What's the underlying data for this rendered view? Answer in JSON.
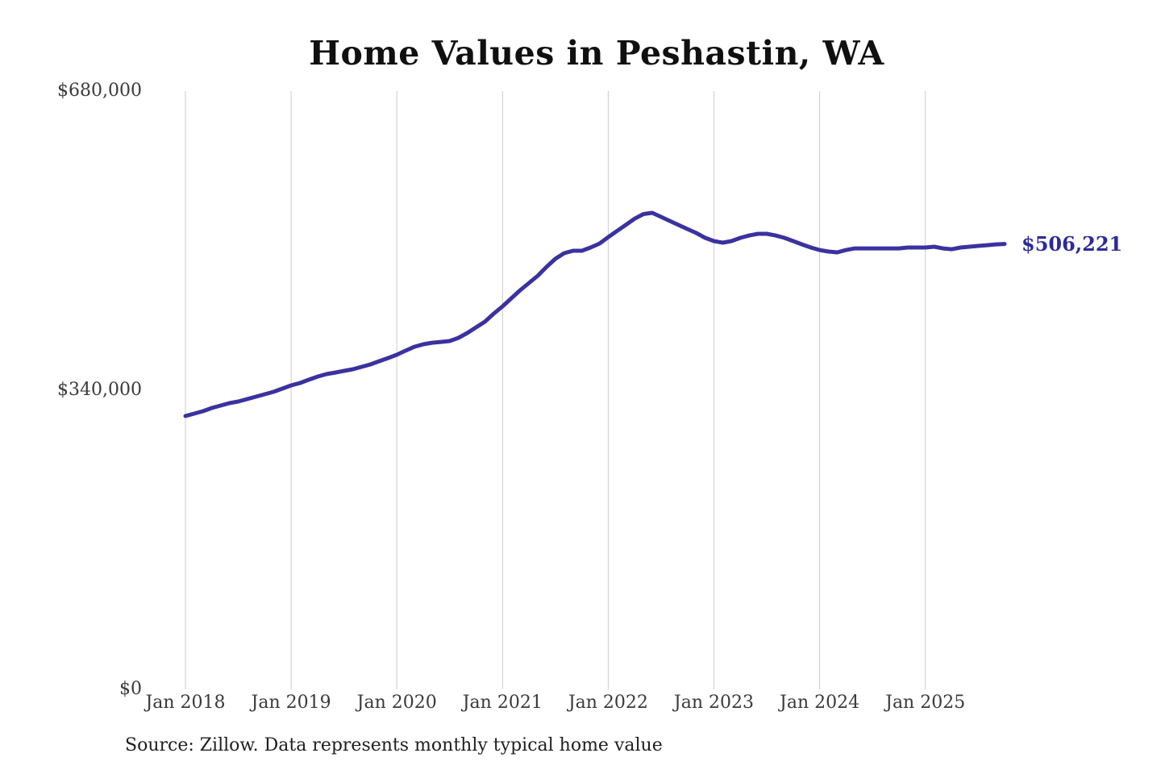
{
  "title": "Home Values in Peshastin, WA",
  "source": {
    "text": "Source: Zillow. Data represents monthly typical home value"
  },
  "chart_data": {
    "type": "line",
    "title": "Home Values in Peshastin, WA",
    "series_name": "Monthly typical home value",
    "frequency": "monthly",
    "x_start": "Jan 2018",
    "x_end": "Oct 2025",
    "x_tick_labels": [
      "Jan 2018",
      "Jan 2019",
      "Jan 2020",
      "Jan 2021",
      "Jan 2022",
      "Jan 2023",
      "Jan 2024",
      "Jan 2025"
    ],
    "x_tick_month_index": [
      0,
      12,
      24,
      36,
      48,
      60,
      72,
      84
    ],
    "y_ticks": [
      {
        "label": "$680,000",
        "value": 680000
      },
      {
        "label": "$340,000",
        "value": 340000
      },
      {
        "label": "$0",
        "value": 0
      }
    ],
    "ylim": [
      0,
      680000
    ],
    "grid": "vertical-only",
    "legend": "none",
    "line_color": "#3a32a0",
    "gridline_color": "#cccccc",
    "end_label": {
      "text": "$506,221",
      "value": 506221,
      "color": "#2d2a9a"
    },
    "values": [
      310700,
      313400,
      316200,
      319800,
      322600,
      325300,
      327200,
      329900,
      332700,
      335400,
      338200,
      341800,
      345500,
      348200,
      351900,
      355500,
      358300,
      360100,
      362000,
      363800,
      366600,
      369300,
      373000,
      376600,
      380300,
      385000,
      389400,
      392200,
      394000,
      394900,
      395900,
      399600,
      405100,
      411500,
      417900,
      427100,
      435300,
      444500,
      453600,
      461900,
      470100,
      480200,
      489400,
      495800,
      498500,
      498500,
      502200,
      506700,
      514000,
      521000,
      528000,
      535000,
      540200,
      541600,
      537000,
      532400,
      527800,
      523200,
      518700,
      513200,
      509500,
      507700,
      509500,
      513200,
      515900,
      517800,
      517800,
      515900,
      513200,
      509500,
      505800,
      502200,
      499400,
      497600,
      496700,
      499400,
      501200,
      501200,
      501200,
      501200,
      501200,
      501200,
      502200,
      502200,
      502200,
      503100,
      501200,
      500300,
      502200,
      503100,
      504000,
      504900,
      505800,
      506221
    ]
  }
}
